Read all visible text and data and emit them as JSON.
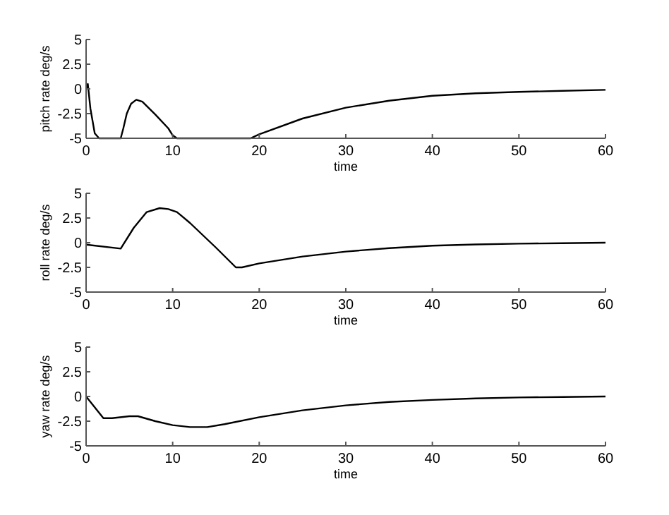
{
  "chart_data": [
    {
      "type": "line",
      "xlabel": "time",
      "ylabel": "pitch rate deg/s",
      "xlim": [
        0,
        60
      ],
      "ylim": [
        -5,
        5
      ],
      "xticks": [
        0,
        10,
        20,
        30,
        40,
        50,
        60
      ],
      "yticks": [
        -5,
        -2.5,
        0,
        2.5,
        5
      ],
      "grid": false,
      "series": [
        {
          "color": "#000000",
          "x": [
            0,
            0.2,
            0.5,
            1,
            1.5,
            4,
            4.3,
            4.7,
            5.2,
            5.8,
            6.5,
            8,
            9.5,
            10,
            10.5,
            19,
            20,
            25,
            30,
            35,
            40,
            45,
            50,
            55,
            60
          ],
          "values": [
            0,
            0.5,
            -2,
            -4.5,
            -5,
            -5,
            -4,
            -2.5,
            -1.5,
            -1.1,
            -1.3,
            -2.6,
            -4,
            -4.7,
            -5,
            -5,
            -4.6,
            -3,
            -1.9,
            -1.2,
            -0.7,
            -0.45,
            -0.3,
            -0.2,
            -0.1
          ]
        }
      ]
    },
    {
      "type": "line",
      "xlabel": "time",
      "ylabel": "roll rate deg/s",
      "xlim": [
        0,
        60
      ],
      "ylim": [
        -5,
        5
      ],
      "xticks": [
        0,
        10,
        20,
        30,
        40,
        50,
        60
      ],
      "yticks": [
        -5,
        -2.5,
        0,
        2.5,
        5
      ],
      "grid": false,
      "series": [
        {
          "color": "#000000",
          "x": [
            0,
            4,
            5.5,
            7,
            8.5,
            9.5,
            10.5,
            12,
            15,
            17.3,
            18,
            20,
            25,
            30,
            35,
            40,
            45,
            50,
            55,
            60
          ],
          "values": [
            -0.2,
            -0.6,
            1.5,
            3.1,
            3.5,
            3.4,
            3.1,
            2,
            -0.5,
            -2.5,
            -2.5,
            -2.1,
            -1.4,
            -0.9,
            -0.55,
            -0.3,
            -0.18,
            -0.1,
            -0.05,
            0
          ]
        }
      ]
    },
    {
      "type": "line",
      "xlabel": "time",
      "ylabel": "yaw rate deg/s",
      "xlim": [
        0,
        60
      ],
      "ylim": [
        -5,
        5
      ],
      "xticks": [
        0,
        10,
        20,
        30,
        40,
        50,
        60
      ],
      "yticks": [
        -5,
        -2.5,
        0,
        2.5,
        5
      ],
      "grid": false,
      "series": [
        {
          "color": "#000000",
          "x": [
            0,
            2,
            3,
            5,
            6,
            8,
            10,
            12,
            14,
            16,
            20,
            25,
            30,
            35,
            40,
            45,
            50,
            55,
            60
          ],
          "values": [
            0,
            -2.2,
            -2.2,
            -2,
            -2,
            -2.5,
            -2.9,
            -3.1,
            -3.1,
            -2.8,
            -2.1,
            -1.4,
            -0.9,
            -0.55,
            -0.35,
            -0.2,
            -0.1,
            -0.05,
            0
          ]
        }
      ]
    }
  ]
}
